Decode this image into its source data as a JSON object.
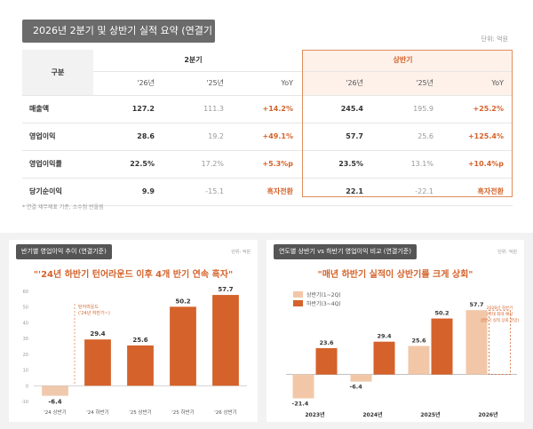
{
  "header": {
    "title": "2026년 2분기 및 상반기 실적 요약 (연결기준)",
    "unit": "단위: 억원"
  },
  "table": {
    "col_label": "구분",
    "group1": "2분기",
    "group2": "상반기",
    "sub": [
      "'26년",
      "'25년",
      "YoY",
      "'26년",
      "'25년",
      "YoY"
    ],
    "rows": [
      {
        "label": "매출액",
        "cells": [
          "127.2",
          "111.3",
          "+14.2%",
          "245.4",
          "195.9",
          "+25.2%"
        ]
      },
      {
        "label": "영업이익",
        "cells": [
          "28.6",
          "19.2",
          "+49.1%",
          "57.7",
          "25.6",
          "+125.4%"
        ]
      },
      {
        "label": "영업이익률",
        "cells": [
          "22.5%",
          "17.2%",
          "+5.3%p",
          "23.5%",
          "13.1%",
          "+10.4%p"
        ]
      },
      {
        "label": "당기순이익",
        "cells": [
          "9.9",
          "-15.1",
          "흑자전환",
          "22.1",
          "-22.1",
          "흑자전환"
        ]
      }
    ],
    "footnote": "* 연결 재무제표 기준, 소수점 반올림"
  },
  "panel1": {
    "title": "반기별 영업이익 추이 (연결기준)",
    "unit": "단위: 억원",
    "headline": "\"'24년 하반기 턴어라운드 이후 4개 반기 연속 흑자\"",
    "annotation": [
      "턴어라운드",
      "('24년 하반기~)"
    ]
  },
  "panel2": {
    "title": "연도별 상반기 vs 하반기 영업이익 비교 (연결기준)",
    "unit": "단위: 억원",
    "headline": "\"매년 하반기 실적이 상반기를 크게 상회\"",
    "annotation": [
      "2026년 하반기",
      "(역대 최대 예상",
      "상반기 실적 상회 전망)"
    ]
  },
  "chart_data": [
    {
      "type": "bar",
      "categories": [
        "'24 상반기",
        "'24 하반기",
        "'25 상반기",
        "'25 하반기",
        "'26 상반기"
      ],
      "values": [
        -6.4,
        29.4,
        25.6,
        50.2,
        57.7
      ],
      "ylim": [
        -10,
        60
      ],
      "yticks": [
        -10,
        0,
        10,
        20,
        30,
        40,
        50,
        60
      ],
      "colors": {
        "pos": "#d4622a",
        "neg": "#f0c9ad"
      }
    },
    {
      "type": "bar",
      "categories": [
        "2023년",
        "2024년",
        "2025년",
        "2026년"
      ],
      "series": [
        {
          "name": "상반기(1~2Q)",
          "values": [
            -21.4,
            -6.4,
            25.6,
            57.7
          ]
        },
        {
          "name": "하반기(3~4Q)",
          "values": [
            23.6,
            29.4,
            50.2,
            null
          ]
        }
      ],
      "ylim": [
        -25,
        65
      ],
      "colors": {
        "h1": "#f2c7a8",
        "h2": "#d4622a"
      }
    }
  ]
}
